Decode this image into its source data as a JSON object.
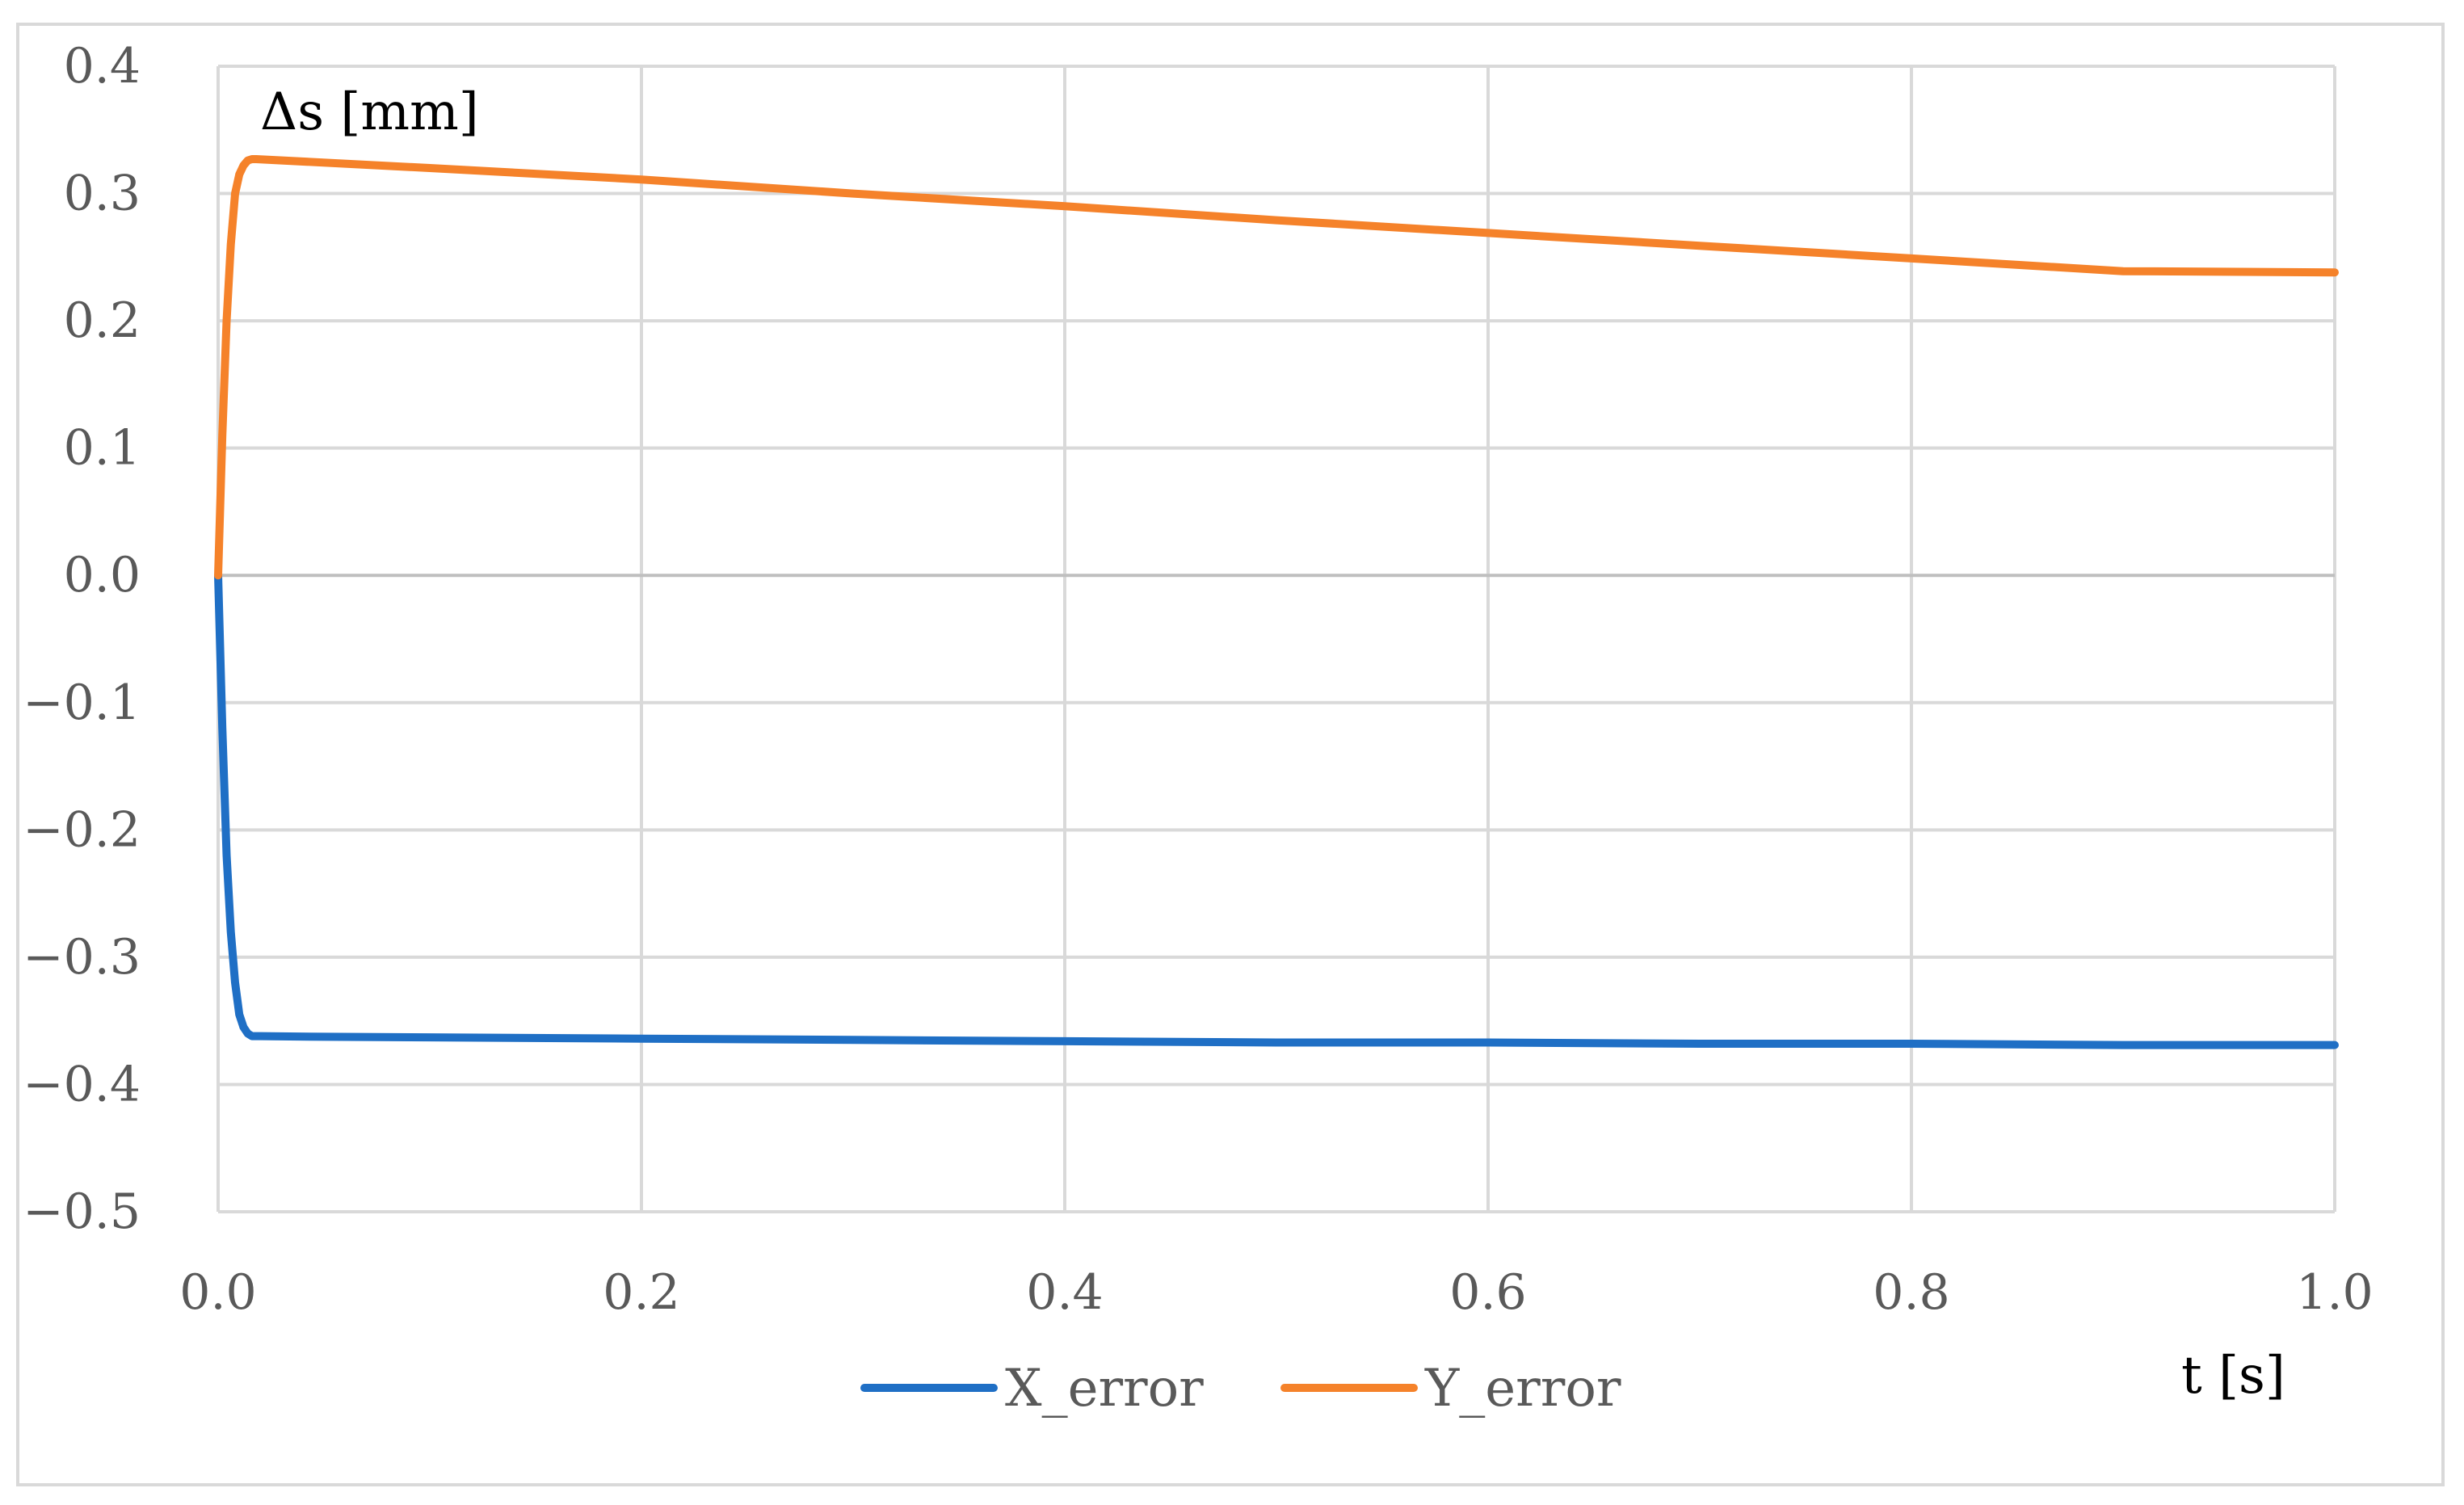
{
  "chart_data": {
    "type": "line",
    "ylabel": "Δs [mm]",
    "xlabel": "t [s]",
    "xlim": [
      0.0,
      1.0
    ],
    "ylim": [
      -0.5,
      0.4
    ],
    "x_ticks": [
      0.0,
      0.2,
      0.4,
      0.6,
      0.8,
      1.0
    ],
    "x_tick_labels": [
      "0.0",
      "0.2",
      "0.4",
      "0.6",
      "0.8",
      "1.0"
    ],
    "y_ticks": [
      0.4,
      0.3,
      0.2,
      0.1,
      0.0,
      -0.1,
      -0.2,
      -0.3,
      -0.4,
      -0.5
    ],
    "y_tick_labels": [
      "0.4",
      "0.3",
      "0.2",
      "0.1",
      "0.0",
      "−0.1",
      "−0.2",
      "−0.3",
      "−0.4",
      "−0.5"
    ],
    "grid": true,
    "legend_position": "bottom",
    "series": [
      {
        "name": "X_error",
        "color": "#1f6fc5",
        "x": [
          0.0,
          0.002,
          0.004,
          0.006,
          0.008,
          0.01,
          0.012,
          0.014,
          0.016,
          0.02,
          0.05,
          0.1,
          0.2,
          0.3,
          0.4,
          0.5,
          0.6,
          0.7,
          0.8,
          0.9,
          1.0
        ],
        "y": [
          0.0,
          -0.12,
          -0.22,
          -0.28,
          -0.32,
          -0.345,
          -0.355,
          -0.36,
          -0.362,
          -0.362,
          -0.3625,
          -0.363,
          -0.364,
          -0.365,
          -0.366,
          -0.367,
          -0.367,
          -0.368,
          -0.368,
          -0.369,
          -0.369
        ]
      },
      {
        "name": "Y_error",
        "color": "#f5822a",
        "x": [
          0.0,
          0.002,
          0.004,
          0.006,
          0.008,
          0.01,
          0.012,
          0.014,
          0.016,
          0.018,
          0.1,
          0.2,
          0.3,
          0.4,
          0.5,
          0.6,
          0.7,
          0.8,
          0.9,
          1.0
        ],
        "y": [
          0.0,
          0.11,
          0.2,
          0.26,
          0.3,
          0.315,
          0.322,
          0.326,
          0.327,
          0.327,
          0.32,
          0.311,
          0.3,
          0.29,
          0.279,
          0.269,
          0.259,
          0.249,
          0.239,
          0.238
        ]
      }
    ]
  }
}
